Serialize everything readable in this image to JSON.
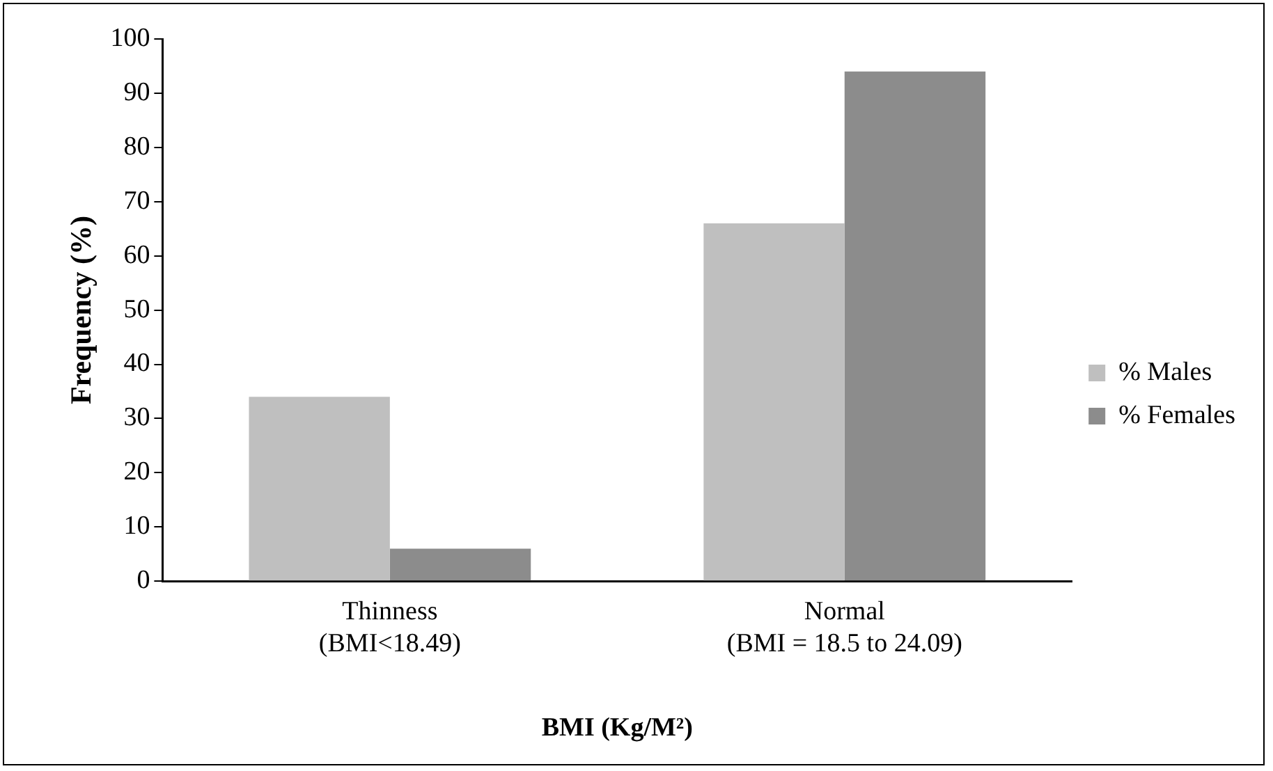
{
  "chart_data": {
    "type": "bar",
    "xlabel": "BMI (Kg/M²)",
    "ylabel": "Frequency (%)",
    "categories": [
      "Thinness\n(BMI<18.49)",
      "Normal\n(BMI = 18.5 to 24.09)"
    ],
    "series": [
      {
        "name": "% Males",
        "color": "#bfbfbf",
        "values": [
          34,
          66
        ]
      },
      {
        "name": "% Females",
        "color": "#8c8c8c",
        "values": [
          6,
          94
        ]
      }
    ],
    "ylim": [
      0,
      100
    ],
    "yticks": [
      0,
      10,
      20,
      30,
      40,
      50,
      60,
      70,
      80,
      90,
      100
    ],
    "grid": false,
    "legend": "right"
  }
}
